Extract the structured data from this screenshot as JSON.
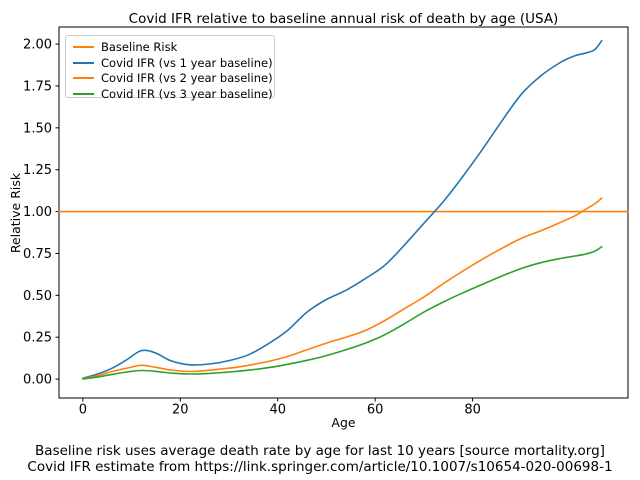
{
  "chart_data": {
    "type": "line",
    "title": "Covid IFR relative to baseline annual risk of death by age (USA)",
    "xlabel": "Age",
    "ylabel": "Relative Risk",
    "grid": false,
    "legend_position": "upper left",
    "xlim": [
      -4.9,
      111.9
    ],
    "ylim": [
      -0.113,
      2.102
    ],
    "x_ticks": [
      0,
      20,
      40,
      60,
      80
    ],
    "x_tick_labels": [
      "0",
      "20",
      "40",
      "60",
      "80"
    ],
    "y_ticks": [
      0.0,
      0.25,
      0.5,
      0.75,
      1.0,
      1.25,
      1.5,
      1.75,
      2.0
    ],
    "y_tick_labels": [
      "0.00",
      "0.25",
      "0.50",
      "0.75",
      "1.00",
      "1.25",
      "1.50",
      "1.75",
      "2.00"
    ],
    "series": [
      {
        "name": "Baseline Risk",
        "color": "#ff7f0e",
        "x": [
          -4.9,
          111.9
        ],
        "y": [
          1.0,
          1.0
        ]
      },
      {
        "name": "Covid IFR (vs 1 year baseline)",
        "color": "#1f77b4",
        "x": [
          0,
          3,
          6,
          9,
          12,
          15,
          18,
          22,
          26,
          30,
          34,
          38,
          42,
          46,
          50,
          54,
          58,
          62,
          66,
          70,
          74,
          78,
          82,
          86,
          90,
          94,
          98,
          101,
          103,
          105,
          106.5
        ],
        "y": [
          0.005,
          0.03,
          0.065,
          0.115,
          0.17,
          0.155,
          0.11,
          0.085,
          0.09,
          0.11,
          0.145,
          0.21,
          0.29,
          0.4,
          0.475,
          0.53,
          0.6,
          0.68,
          0.8,
          0.93,
          1.06,
          1.21,
          1.37,
          1.54,
          1.7,
          1.81,
          1.89,
          1.93,
          1.945,
          1.965,
          2.02
        ]
      },
      {
        "name": "Covid IFR (vs 2 year baseline)",
        "color": "#ff7f0e",
        "x": [
          0,
          3,
          6,
          9,
          12,
          15,
          18,
          22,
          26,
          30,
          34,
          38,
          42,
          46,
          50,
          54,
          58,
          62,
          66,
          70,
          74,
          78,
          82,
          86,
          90,
          94,
          98,
          101,
          103,
          105,
          106.5
        ],
        "y": [
          0.003,
          0.02,
          0.045,
          0.065,
          0.082,
          0.07,
          0.054,
          0.045,
          0.053,
          0.065,
          0.082,
          0.105,
          0.135,
          0.175,
          0.215,
          0.25,
          0.29,
          0.35,
          0.42,
          0.49,
          0.57,
          0.645,
          0.715,
          0.78,
          0.84,
          0.885,
          0.935,
          0.975,
          1.01,
          1.045,
          1.08
        ]
      },
      {
        "name": "Covid IFR (vs 3 year baseline)",
        "color": "#2ca02c",
        "x": [
          0,
          3,
          6,
          9,
          12,
          15,
          18,
          22,
          26,
          30,
          34,
          38,
          42,
          46,
          50,
          54,
          58,
          62,
          66,
          70,
          74,
          78,
          82,
          86,
          90,
          94,
          98,
          101,
          103,
          105,
          106.5
        ],
        "y": [
          0.001,
          0.012,
          0.028,
          0.042,
          0.051,
          0.046,
          0.036,
          0.03,
          0.034,
          0.042,
          0.053,
          0.068,
          0.088,
          0.112,
          0.14,
          0.175,
          0.215,
          0.265,
          0.33,
          0.4,
          0.46,
          0.515,
          0.565,
          0.615,
          0.66,
          0.695,
          0.72,
          0.735,
          0.745,
          0.762,
          0.79
        ]
      }
    ],
    "captions": [
      "Baseline risk uses average death rate by age for last 10 years [source mortality.org]",
      "Covid IFR estimate from https://link.springer.com/article/10.1007/s10654-020-00698-1"
    ]
  }
}
